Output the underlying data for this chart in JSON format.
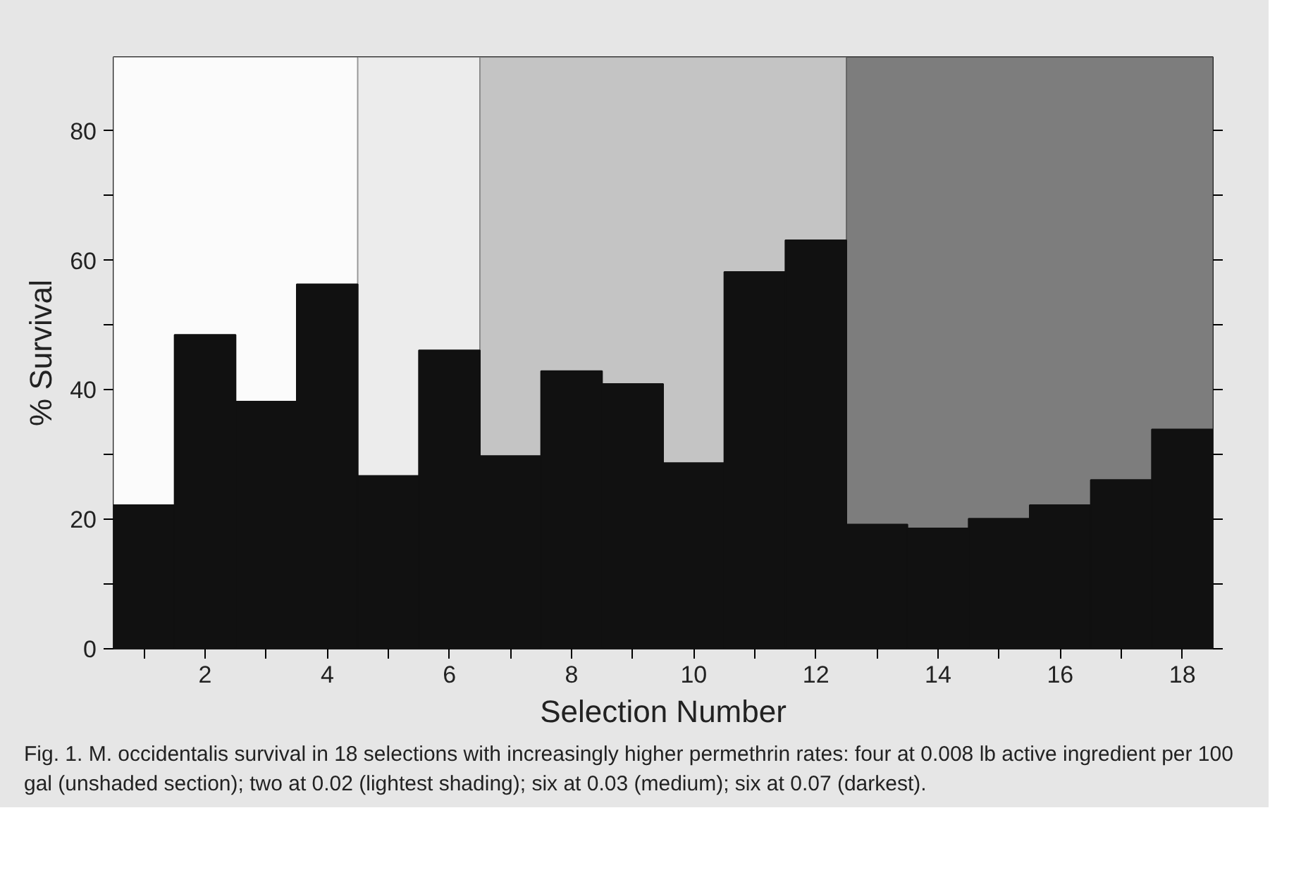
{
  "chart_data": {
    "type": "bar",
    "xlabel": "Selection Number",
    "ylabel": "% Survival",
    "x": [
      1,
      2,
      3,
      4,
      5,
      6,
      7,
      8,
      9,
      10,
      11,
      12,
      13,
      14,
      15,
      16,
      17,
      18
    ],
    "values": [
      22.2,
      48.5,
      38.2,
      56.3,
      26.7,
      46.1,
      29.8,
      42.9,
      40.9,
      28.7,
      58.2,
      63.1,
      19.2,
      18.6,
      20.1,
      22.2,
      26.1,
      33.9
    ],
    "color": "#111111",
    "xlim": [
      0.5,
      18.5
    ],
    "ylim": [
      0,
      91.4
    ],
    "xticks": [
      {
        "value": 1,
        "label": null
      },
      2,
      {
        "value": 3,
        "label": null
      },
      4,
      {
        "value": 5,
        "label": null
      },
      6,
      {
        "value": 7,
        "label": null
      },
      8,
      {
        "value": 9,
        "label": null
      },
      10,
      {
        "value": 11,
        "label": null
      },
      12,
      {
        "value": 13,
        "label": null
      },
      14,
      {
        "value": 15,
        "label": null
      },
      16,
      {
        "value": 17,
        "label": null
      },
      18
    ],
    "yticks": [
      0,
      {
        "value": 10,
        "label": null
      },
      20,
      {
        "value": 30,
        "label": null
      },
      40,
      {
        "value": 50,
        "label": null
      },
      60,
      {
        "value": 70,
        "label": null
      },
      80
    ],
    "bands": [
      {
        "axis": "x",
        "from": 0.5,
        "to": 4.5,
        "color": "#fbfbfb"
      },
      {
        "axis": "x",
        "from": 4.5,
        "to": 6.5,
        "color": "#ececec"
      },
      {
        "axis": "x",
        "from": 6.5,
        "to": 12.5,
        "color": "#c4c4c4"
      },
      {
        "axis": "x",
        "from": 12.5,
        "to": 18.5,
        "color": "#7d7d7d"
      }
    ],
    "annotations": [
      "Fig. 1. M. occidentalis survival in 18 selections with increasingly higher permethrin rates: four at 0.008 lb active ingredient per 100 gal (unshaded section); two at 0.02 (lightest shading); six at 0.03 (medium); six at 0.07 (darkest)."
    ]
  }
}
